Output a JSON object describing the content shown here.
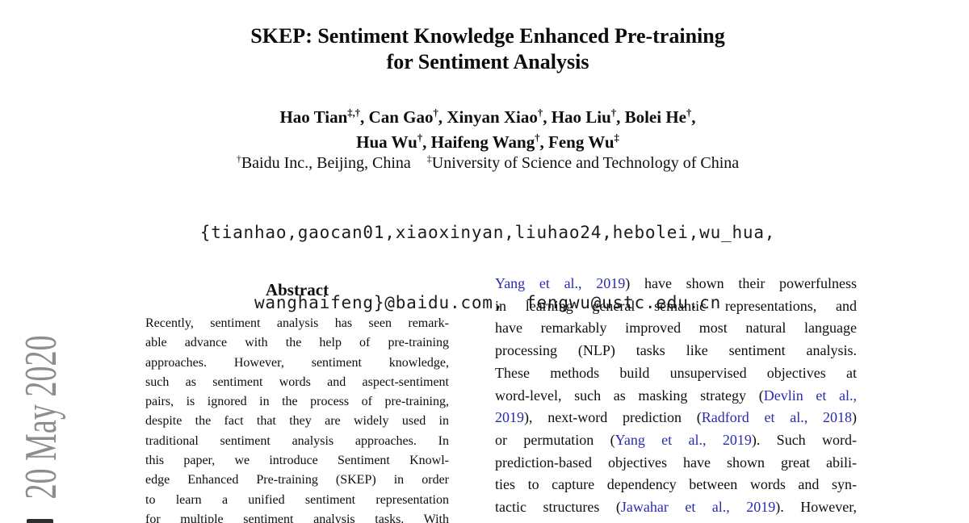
{
  "colors": {
    "citation_blue": "#2b2bb2",
    "body_text": "#0e0e0e",
    "watermark_gray": "#8d8d8d"
  },
  "watermark": {
    "date_text": "20 May 2020"
  },
  "header": {
    "title_line1": "SKEP: Sentiment Knowledge Enhanced Pre-training",
    "title_line2": "for Sentiment Analysis",
    "authors_line1": [
      {
        "t": "Hao Tian"
      },
      {
        "t": "‡,†",
        "sup": 1
      },
      {
        "t": ", Can Gao"
      },
      {
        "t": "†",
        "sup": 1
      },
      {
        "t": ", Xinyan Xiao"
      },
      {
        "t": "†",
        "sup": 1
      },
      {
        "t": ", Hao Liu"
      },
      {
        "t": "†",
        "sup": 1
      },
      {
        "t": ", Bolei He"
      },
      {
        "t": "†",
        "sup": 1
      },
      {
        "t": ","
      }
    ],
    "authors_line2": [
      {
        "t": "Hua Wu"
      },
      {
        "t": "†",
        "sup": 1
      },
      {
        "t": ", Haifeng Wang"
      },
      {
        "t": "†",
        "sup": 1
      },
      {
        "t": ", Feng Wu"
      },
      {
        "t": "‡",
        "sup": 1
      }
    ],
    "affiliation": [
      {
        "t": "†",
        "sup": 1
      },
      {
        "t": "Baidu Inc., Beijing, China    "
      },
      {
        "t": "‡",
        "sup": 1
      },
      {
        "t": "University of Science and Technology of China"
      }
    ],
    "email_line1": "{tianhao,gaocan01,xiaoxinyan,liuhao24,hebolei,wu_hua,",
    "email_line2": "wanghaifeng}@baidu.com,  fengwu@ustc.edu.cn"
  },
  "abstract": {
    "heading": "Abstract",
    "lines": [
      "Recently, sentiment analysis has seen remark-",
      "able advance with the help of pre-training",
      "approaches. However, sentiment knowledge,",
      "such as sentiment words and aspect-sentiment",
      "pairs, is ignored in the process of pre-training,",
      "despite the fact that they are widely used in",
      "traditional sentiment analysis approaches. In",
      "this paper, we introduce Sentiment Knowl-",
      "edge Enhanced Pre-training (SKEP) in order",
      "to learn a unified sentiment representation",
      "for multiple sentiment analysis tasks. With"
    ]
  },
  "intro_column": {
    "lines": [
      [
        {
          "t": "Yang et al., 2019",
          "c": 1
        },
        {
          "t": ") have shown their powerfulness"
        }
      ],
      [
        {
          "t": "in learning general semantic representations, and"
        }
      ],
      [
        {
          "t": "have remarkably improved most natural language"
        }
      ],
      [
        {
          "t": "processing (NLP) tasks like sentiment analysis."
        }
      ],
      [
        {
          "t": "These methods build unsupervised objectives at"
        }
      ],
      [
        {
          "t": "word-level, such as masking strategy ("
        },
        {
          "t": "Devlin et al.,",
          "c": 1
        }
      ],
      [
        {
          "t": "2019",
          "c": 1
        },
        {
          "t": "), next-word prediction ("
        },
        {
          "t": "Radford et al., 2018",
          "c": 1
        },
        {
          "t": ")"
        }
      ],
      [
        {
          "t": "or permutation ("
        },
        {
          "t": "Yang et al., 2019",
          "c": 1
        },
        {
          "t": "). Such word-"
        }
      ],
      [
        {
          "t": "prediction-based objectives have shown great abili-"
        }
      ],
      [
        {
          "t": "ties to capture dependency between words and syn-"
        }
      ],
      [
        {
          "t": "tactic structures ("
        },
        {
          "t": "Jawahar et al., 2019",
          "c": 1
        },
        {
          "t": "). However,"
        }
      ]
    ]
  }
}
